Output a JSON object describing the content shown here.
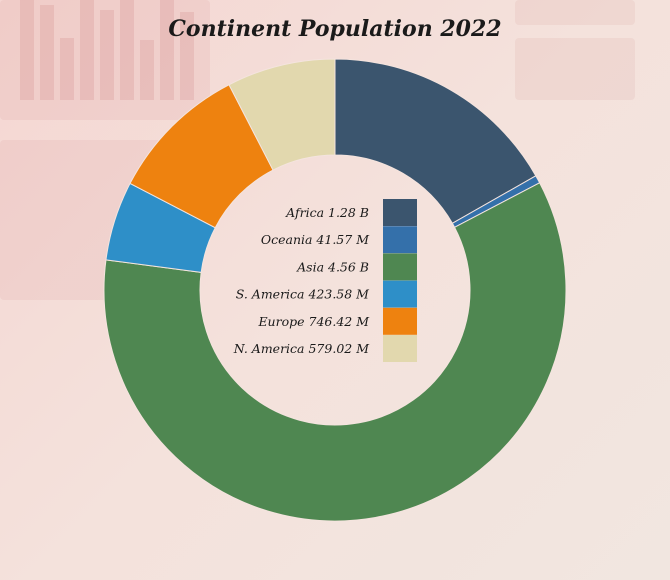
{
  "chart_data": {
    "type": "pie",
    "title": "Continent Population 2022",
    "categories": [
      "Africa",
      "Oceania",
      "Asia",
      "S. America",
      "Europe",
      "N. America"
    ],
    "values": [
      1.28,
      0.04157,
      4.56,
      0.42358,
      0.74642,
      0.57902
    ],
    "value_labels": [
      "1.28 B",
      "41.57 M",
      "4.56 B",
      "423.58 M",
      "746.42 M",
      "579.02 M"
    ],
    "colors": [
      "#3b556e",
      "#3470aa",
      "#4f8751",
      "#2e8fc8",
      "#ee820f",
      "#e2d8ae"
    ],
    "legend_position": "center"
  }
}
